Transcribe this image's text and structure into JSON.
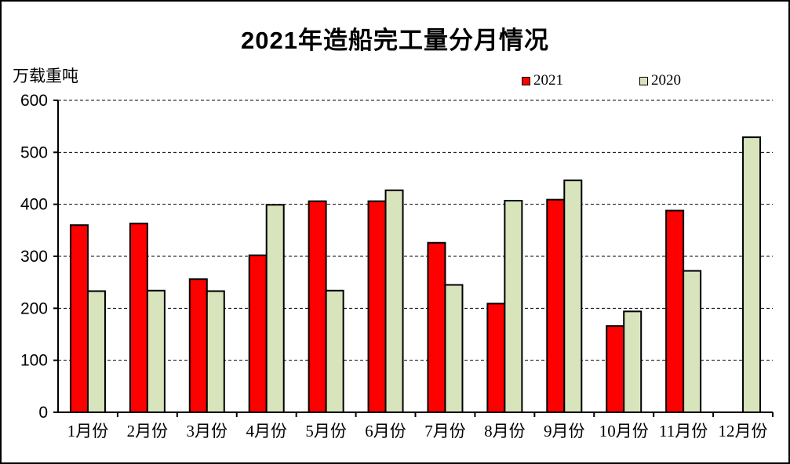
{
  "window": {
    "background": "#FFFFFF",
    "border_color": "#000000"
  },
  "title": "2021年造船完工量分月情况",
  "y_axis": {
    "unit_label": "万载重吨",
    "tick_labels": [
      "0",
      "100",
      "200",
      "300",
      "400",
      "500",
      "600"
    ]
  },
  "legend": [
    {
      "label": "2021",
      "color": "#FF0000"
    },
    {
      "label": "2020",
      "color": "#D8E4BC"
    }
  ],
  "chart_data": {
    "type": "bar",
    "title": "2021年造船完工量分月情况",
    "ylabel": "万载重吨",
    "categories": [
      "1月份",
      "2月份",
      "3月份",
      "4月份",
      "5月份",
      "6月份",
      "7月份",
      "8月份",
      "9月份",
      "10月份",
      "11月份",
      "12月份"
    ],
    "series": [
      {
        "name": "2021",
        "color": "#FF0000",
        "border_color": "#000000",
        "values": [
          360,
          363,
          256,
          302,
          406,
          406,
          326,
          209,
          409,
          166,
          388,
          null
        ]
      },
      {
        "name": "2020",
        "color": "#D8E4BC",
        "border_color": "#000000",
        "values": [
          233,
          234,
          233,
          399,
          234,
          427,
          245,
          407,
          446,
          194,
          272,
          529
        ]
      }
    ],
    "ylim": [
      0,
      600
    ],
    "ytick_interval": 100,
    "grid": "horizontal-dashed",
    "legend_position": "top-right"
  }
}
